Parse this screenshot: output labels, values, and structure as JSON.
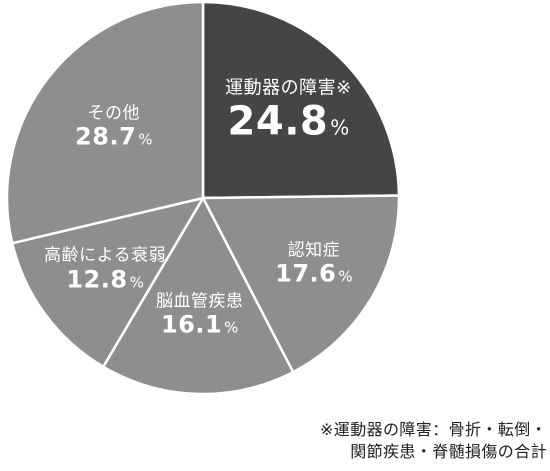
{
  "chart_data": {
    "type": "pie",
    "start_angle_deg": 0,
    "direction": "clockwise",
    "slices": [
      {
        "name": "運動器の障害※",
        "value": 24.8,
        "unit": "%",
        "color": "#454545",
        "emphasis": true
      },
      {
        "name": "認知症",
        "value": 17.6,
        "unit": "%",
        "color": "#8e8e8e",
        "emphasis": false
      },
      {
        "name": "脳血管疾患",
        "value": 16.1,
        "unit": "%",
        "color": "#8e8e8e",
        "emphasis": false
      },
      {
        "name": "高齢による衰弱",
        "value": 12.8,
        "unit": "%",
        "color": "#8e8e8e",
        "emphasis": false
      },
      {
        "name": "その他",
        "value": 28.7,
        "unit": "%",
        "color": "#8e8e8e",
        "emphasis": false
      }
    ],
    "separator_color": "#ffffff"
  },
  "footnote": {
    "line1": "※運動器の障害：骨折・転倒・",
    "line2": "関節疾患・脊髄損傷の合計"
  }
}
